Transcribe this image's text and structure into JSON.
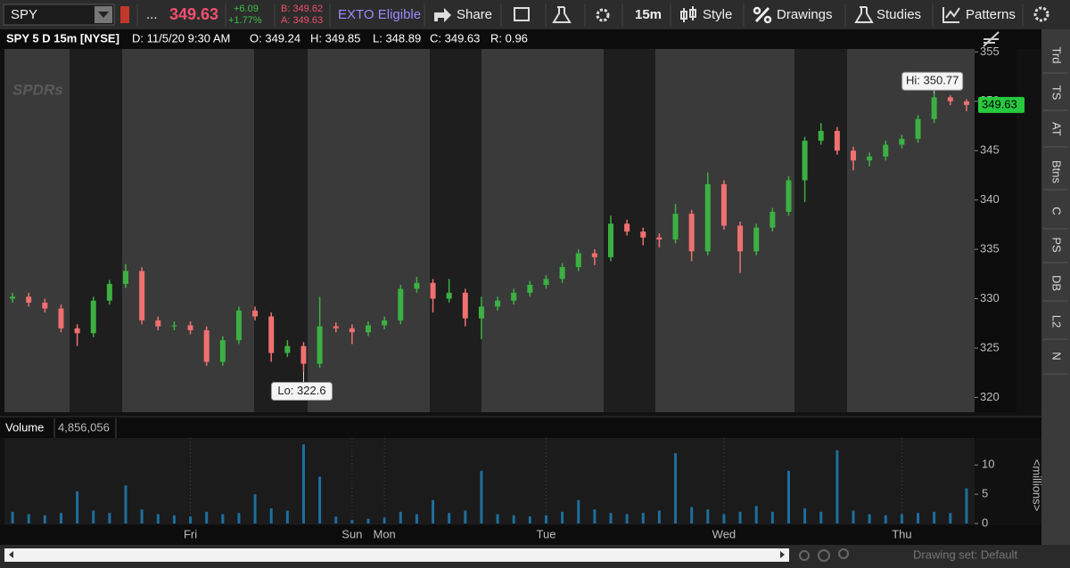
{
  "toolbar": {
    "symbol": "SPY",
    "more": "...",
    "last": "349.63",
    "change": "+6.09",
    "change_pct": "+1.77%",
    "bid": "B: 349.62",
    "ask": "A: 349.63",
    "exto": "EXTO Eligible",
    "share": "Share",
    "aggregation": "15m",
    "style": "Style",
    "drawings": "Drawings",
    "studies": "Studies",
    "patterns": "Patterns"
  },
  "header": {
    "title": "SPY 5 D 15m [NYSE]",
    "date": "D: 11/5/20 9:30 AM",
    "open": "O: 349.24",
    "high": "H: 349.85",
    "low": "L: 348.89",
    "close": "C: 349.63",
    "range": "R: 0.96"
  },
  "watermark": "SPDRs",
  "side_tabs": [
    "Trd",
    "TS",
    "AT",
    "Btns",
    "C",
    "PS",
    "DB",
    "L2",
    "N"
  ],
  "footer": {
    "drawing_set": "Drawing set: Default"
  },
  "chart_data": {
    "type": "candlestick",
    "up_color": "#3cb043",
    "down_color": "#f07070",
    "volume_color": "#1d6f9e",
    "last_color": "#27c93f",
    "categories": [
      null,
      null,
      null,
      null,
      null,
      null,
      null,
      null,
      null,
      null,
      null,
      "Fri",
      null,
      null,
      null,
      null,
      null,
      null,
      null,
      null,
      null,
      "Sun",
      null,
      "Mon",
      null,
      null,
      null,
      null,
      null,
      null,
      null,
      null,
      null,
      "Tue",
      null,
      null,
      null,
      null,
      null,
      null,
      null,
      null,
      null,
      null,
      "Wed",
      null,
      null,
      null,
      null,
      null,
      null,
      null,
      null,
      null,
      null,
      "Thu",
      null,
      null,
      null,
      null
    ],
    "open": [
      330.0,
      330.2,
      329.6,
      329.0,
      327.0,
      326.5,
      329.8,
      331.5,
      332.8,
      327.8,
      327.2,
      327.3,
      326.8,
      323.6,
      325.8,
      328.8,
      328.2,
      324.5,
      325.2,
      323.4,
      327.2,
      327.0,
      326.6,
      327.3,
      327.8,
      331.0,
      331.6,
      330.0,
      330.6,
      328.0,
      329.2,
      329.8,
      330.6,
      331.4,
      332.0,
      333.2,
      334.6,
      334.2,
      337.6,
      336.8,
      336.2,
      336.0,
      338.6,
      334.8,
      341.6,
      337.4,
      334.8,
      337.2,
      338.8,
      342.0,
      346.0,
      347.0,
      345.0,
      344.0,
      344.4,
      345.6,
      346.2,
      348.2,
      350.4,
      350.0
    ],
    "high": [
      330.6,
      330.6,
      330.0,
      329.4,
      327.4,
      330.2,
      331.9,
      333.5,
      333.2,
      328.2,
      327.7,
      327.7,
      327.2,
      326.2,
      329.2,
      329.2,
      328.6,
      325.8,
      325.6,
      330.2,
      327.6,
      327.4,
      327.7,
      328.2,
      331.4,
      332.2,
      332.0,
      332.0,
      331.0,
      330.2,
      330.2,
      331.0,
      331.8,
      332.4,
      333.6,
      335.0,
      335.0,
      338.4,
      338.0,
      337.2,
      336.6,
      339.6,
      339.0,
      342.8,
      342.0,
      337.8,
      337.6,
      339.2,
      342.4,
      346.4,
      347.8,
      347.4,
      345.4,
      344.8,
      346.0,
      346.6,
      348.6,
      350.77,
      350.6,
      350.2
    ],
    "low": [
      329.6,
      329.2,
      328.6,
      326.6,
      325.2,
      326.1,
      329.4,
      331.1,
      327.4,
      326.8,
      326.8,
      326.4,
      323.2,
      323.2,
      325.4,
      327.8,
      323.6,
      324.1,
      322.6,
      323.0,
      326.6,
      325.4,
      326.2,
      326.9,
      327.4,
      330.6,
      328.6,
      329.6,
      327.2,
      325.9,
      328.8,
      329.4,
      330.2,
      331.0,
      331.6,
      332.8,
      333.4,
      333.8,
      336.4,
      335.4,
      335.2,
      335.6,
      333.8,
      334.4,
      337.0,
      332.6,
      334.4,
      336.8,
      338.4,
      339.8,
      345.6,
      344.6,
      343.0,
      343.4,
      344.0,
      345.2,
      345.8,
      347.8,
      349.6,
      349.0
    ],
    "close": [
      330.2,
      329.6,
      329.0,
      327.0,
      326.5,
      329.8,
      331.5,
      332.8,
      327.8,
      327.2,
      327.3,
      326.8,
      323.6,
      325.8,
      328.8,
      328.2,
      324.5,
      325.2,
      323.4,
      327.2,
      327.0,
      326.6,
      327.3,
      327.8,
      331.0,
      331.6,
      330.0,
      330.6,
      328.0,
      329.2,
      329.8,
      330.6,
      331.4,
      332.0,
      333.2,
      334.6,
      334.2,
      337.6,
      336.8,
      336.2,
      336.0,
      338.6,
      334.8,
      341.6,
      337.4,
      334.8,
      337.2,
      338.8,
      342.0,
      346.0,
      347.0,
      345.0,
      344.0,
      344.4,
      345.6,
      346.2,
      348.2,
      350.4,
      350.0,
      349.63
    ],
    "volume": [
      2.0,
      1.6,
      1.4,
      1.8,
      5.5,
      2.2,
      1.8,
      6.5,
      2.4,
      1.6,
      1.4,
      1.2,
      2.0,
      1.6,
      1.8,
      5.0,
      2.6,
      2.2,
      13.5,
      8.0,
      1.2,
      0.6,
      0.8,
      1.0,
      2.0,
      1.6,
      4.0,
      1.8,
      2.2,
      9.0,
      1.6,
      1.4,
      1.2,
      1.4,
      2.0,
      4.0,
      2.4,
      1.8,
      1.6,
      1.8,
      2.2,
      12.0,
      2.8,
      2.4,
      1.6,
      2.0,
      3.0,
      2.0,
      9.0,
      2.6,
      2.0,
      12.5,
      2.2,
      1.6,
      1.4,
      1.6,
      1.8,
      2.0,
      1.8,
      6.0
    ],
    "ylim": [
      318.5,
      355.3
    ],
    "yticks": [
      320,
      325,
      330,
      335,
      340,
      345,
      350,
      355
    ],
    "annotations": [
      "Hi: 350.77",
      "Lo: 322.6"
    ],
    "volume_title": "Volume",
    "volume_total": "4,856,056",
    "volume_unit": "<millions>",
    "volume_ylim": [
      0,
      14.6
    ],
    "volume_yticks": [
      0,
      5,
      10
    ]
  }
}
